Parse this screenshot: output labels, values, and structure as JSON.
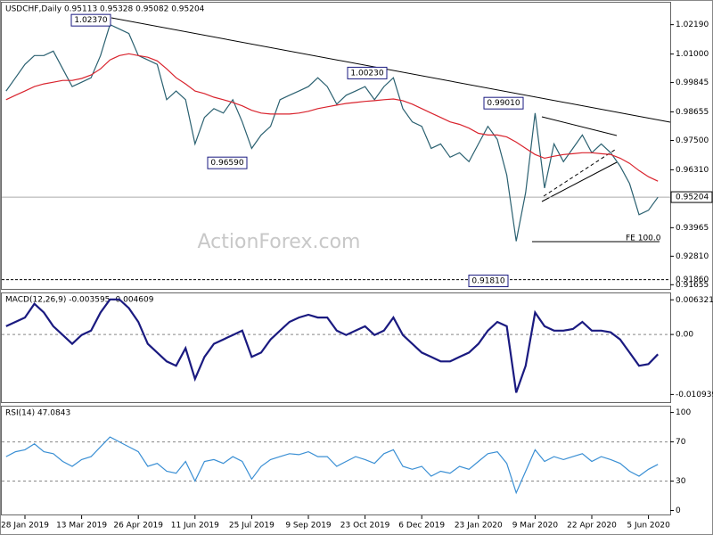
{
  "chart_data": [
    {
      "type": "line",
      "title": "USDCHF,Daily  0.95113 0.95328 0.95082 0.95204",
      "watermark": "ActionForex.com",
      "ylim": [
        0.9145,
        1.0308
      ],
      "yticks": [
        {
          "value": 1.0219,
          "label": "1.02190"
        },
        {
          "value": 1.01,
          "label": "1.01000"
        },
        {
          "value": 0.99845,
          "label": "0.99845"
        },
        {
          "value": 0.98655,
          "label": "0.98655"
        },
        {
          "value": 0.975,
          "label": "0.97500"
        },
        {
          "value": 0.9631,
          "label": "0.96310"
        },
        {
          "value": 0.93965,
          "label": "0.93965"
        },
        {
          "value": 0.9281,
          "label": "0.92810"
        },
        {
          "value": 0.91655,
          "label": "0.91655"
        }
      ],
      "grid": false,
      "last_price": {
        "value": 0.95204,
        "label": "0.95204"
      },
      "level": {
        "value": 0.9186,
        "label": "0.91860"
      },
      "annotations": [
        {
          "value": 1.0237,
          "label": "1.02370"
        },
        {
          "value": 0.9659,
          "label": "0.96590"
        },
        {
          "value": 1.0023,
          "label": "1.00230"
        },
        {
          "value": 0.9901,
          "label": "0.99010"
        },
        {
          "value": 0.9181,
          "label": "0.91810"
        }
      ],
      "fe_label": "FE 100.0",
      "series": [
        {
          "color": "#2a6070",
          "values": [
            0.995,
            1.0004,
            1.0058,
            1.0094,
            1.0094,
            1.0112,
            1.004,
            0.9968,
            0.9986,
            1.0004,
            1.0094,
            1.0219,
            1.0201,
            1.0183,
            1.0094,
            1.0076,
            1.0058,
            0.9915,
            0.995,
            0.9915,
            0.9736,
            0.9843,
            0.9879,
            0.9861,
            0.9915,
            0.9825,
            0.9718,
            0.9772,
            0.9807,
            0.9915,
            0.9933,
            0.995,
            0.9968,
            1.0004,
            0.9968,
            0.9897,
            0.9933,
            0.995,
            0.9968,
            0.9915,
            0.9968,
            1.0004,
            0.9879,
            0.9825,
            0.9807,
            0.9718,
            0.9736,
            0.9682,
            0.97,
            0.9664,
            0.9736,
            0.9807,
            0.9754,
            0.961,
            0.9342,
            0.9539,
            0.9861,
            0.9557,
            0.9736,
            0.9664,
            0.9718,
            0.9772,
            0.97,
            0.9736,
            0.97,
            0.9646,
            0.9575,
            0.9449,
            0.9467,
            0.952
          ]
        },
        {
          "color": "#d9232d",
          "values": [
            0.9915,
            0.9933,
            0.995,
            0.9968,
            0.9979,
            0.9986,
            0.9993,
            0.9993,
            1.0001,
            1.0015,
            1.004,
            1.0076,
            1.0094,
            1.0101,
            1.0094,
            1.0087,
            1.0072,
            1.004,
            1.0004,
            0.9979,
            0.995,
            0.994,
            0.9925,
            0.9915,
            0.9904,
            0.989,
            0.9872,
            0.9861,
            0.9857,
            0.9857,
            0.9857,
            0.9861,
            0.9868,
            0.9879,
            0.9886,
            0.9893,
            0.99,
            0.9904,
            0.9908,
            0.9911,
            0.9915,
            0.9918,
            0.9911,
            0.9897,
            0.9879,
            0.9861,
            0.9843,
            0.9825,
            0.9815,
            0.98,
            0.9779,
            0.9772,
            0.9772,
            0.9764,
            0.9743,
            0.9718,
            0.9693,
            0.9678,
            0.9686,
            0.9693,
            0.9696,
            0.97,
            0.97,
            0.9696,
            0.9693,
            0.9678,
            0.9657,
            0.9628,
            0.9603,
            0.9585
          ]
        }
      ]
    },
    {
      "type": "line",
      "title": "MACD(12,26,9) -0.003595 -0.004609",
      "ylim": [
        -0.0125,
        0.0075
      ],
      "yticks": [
        0.006321,
        {
          "value": 0,
          "label": "0.00"
        },
        -0.010939
      ],
      "grid": true,
      "series": [
        {
          "color": "#1a1a80",
          "values": [
            0.0015,
            0.0023,
            0.0031,
            0.0056,
            0.004,
            0.0015,
            -0.0001,
            -0.0017,
            -0.0001,
            0.0007,
            0.004,
            0.0064,
            0.0064,
            0.0048,
            0.0023,
            -0.0017,
            -0.0033,
            -0.0049,
            -0.0057,
            -0.0025,
            -0.0081,
            -0.0041,
            -0.0017,
            -0.0009,
            -0.0001,
            0.0007,
            -0.0041,
            -0.0033,
            -0.0009,
            0.0007,
            0.0023,
            0.0031,
            0.0036,
            0.0031,
            0.0031,
            0.0007,
            -0.0001,
            0.0007,
            0.0015,
            -0.0001,
            0.0007,
            0.0031,
            -0.0001,
            -0.0017,
            -0.0033,
            -0.0041,
            -0.0049,
            -0.0049,
            -0.0041,
            -0.0033,
            -0.0017,
            0.0007,
            0.0023,
            0.0015,
            -0.0106,
            -0.0057,
            0.004,
            0.0015,
            0.0007,
            0.0007,
            0.001,
            0.0023,
            0.0007,
            0.0007,
            0.0004,
            -0.0009,
            -0.0033,
            -0.0057,
            -0.0054,
            -0.0036
          ]
        }
      ]
    },
    {
      "type": "line",
      "title": "RSI(14) 47.0843",
      "ylim": [
        -5,
        106
      ],
      "yticks": [
        100,
        70,
        30,
        0
      ],
      "grid": true,
      "categories": [
        null,
        null,
        "28 Jan 2019",
        null,
        null,
        null,
        null,
        null,
        "13 Mar 2019",
        null,
        null,
        null,
        null,
        null,
        "26 Apr 2019",
        null,
        null,
        null,
        null,
        null,
        "11 Jun 2019",
        null,
        null,
        null,
        null,
        null,
        "25 Jul 2019",
        null,
        null,
        null,
        null,
        null,
        "9 Sep 2019",
        null,
        null,
        null,
        null,
        null,
        "23 Oct 2019",
        null,
        null,
        null,
        null,
        null,
        "6 Dec 2019",
        null,
        null,
        null,
        null,
        null,
        "23 Jan 2020",
        null,
        null,
        null,
        null,
        null,
        "9 Mar 2020",
        null,
        null,
        null,
        null,
        null,
        "22 Apr 2020",
        null,
        null,
        null,
        null,
        null,
        "5 Jun 2020",
        null
      ],
      "series": [
        {
          "color": "#3a8fd4",
          "values": [
            55,
            60,
            62,
            68,
            60,
            58,
            50,
            45,
            52,
            55,
            65,
            75,
            70,
            65,
            60,
            45,
            48,
            40,
            38,
            50,
            30,
            50,
            52,
            48,
            55,
            50,
            32,
            45,
            52,
            55,
            58,
            57,
            60,
            55,
            55,
            45,
            50,
            55,
            52,
            48,
            58,
            62,
            45,
            42,
            45,
            35,
            40,
            38,
            45,
            42,
            50,
            58,
            60,
            48,
            18,
            40,
            62,
            50,
            55,
            52,
            55,
            58,
            50,
            55,
            52,
            48,
            40,
            35,
            42,
            47.08
          ]
        }
      ]
    }
  ]
}
